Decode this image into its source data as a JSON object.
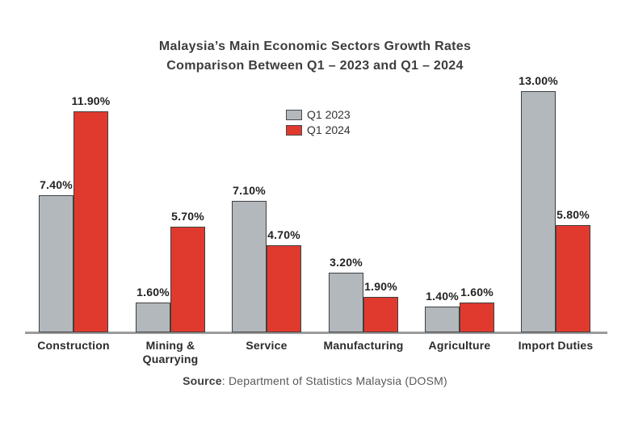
{
  "chart_data": {
    "type": "bar",
    "title": "Malaysia’s Main Economic Sectors Growth Rates",
    "subtitle": "Comparison Between Q1 – 2023 and Q1 – 2024",
    "categories": [
      "Construction",
      "Mining & Quarrying",
      "Service",
      "Manufacturing",
      "Agriculture",
      "Import Duties"
    ],
    "series": [
      {
        "name": "Q1 2023",
        "color": "#b2b8bc",
        "values": [
          7.4,
          1.6,
          7.1,
          3.2,
          1.4,
          13.0
        ],
        "labels": [
          "7.40%",
          "1.60%",
          "7.10%",
          "3.20%",
          "1.40%",
          "13.00%"
        ]
      },
      {
        "name": "Q1 2024",
        "color": "#e03a2e",
        "values": [
          11.9,
          5.7,
          4.7,
          1.9,
          1.6,
          5.8
        ],
        "labels": [
          "11.90%",
          "5.70%",
          "4.70%",
          "1.90%",
          "1.60%",
          "5.80%"
        ]
      }
    ],
    "ylim": [
      0,
      13
    ],
    "grid": false,
    "legend_position": "top-center",
    "value_suffix": "%",
    "axis_line_color": "#9b9b9b",
    "bar_border_color": "#3f3f3f"
  },
  "source": {
    "label": "Source",
    "text": ": Department of Statistics Malaysia (DOSM)"
  }
}
